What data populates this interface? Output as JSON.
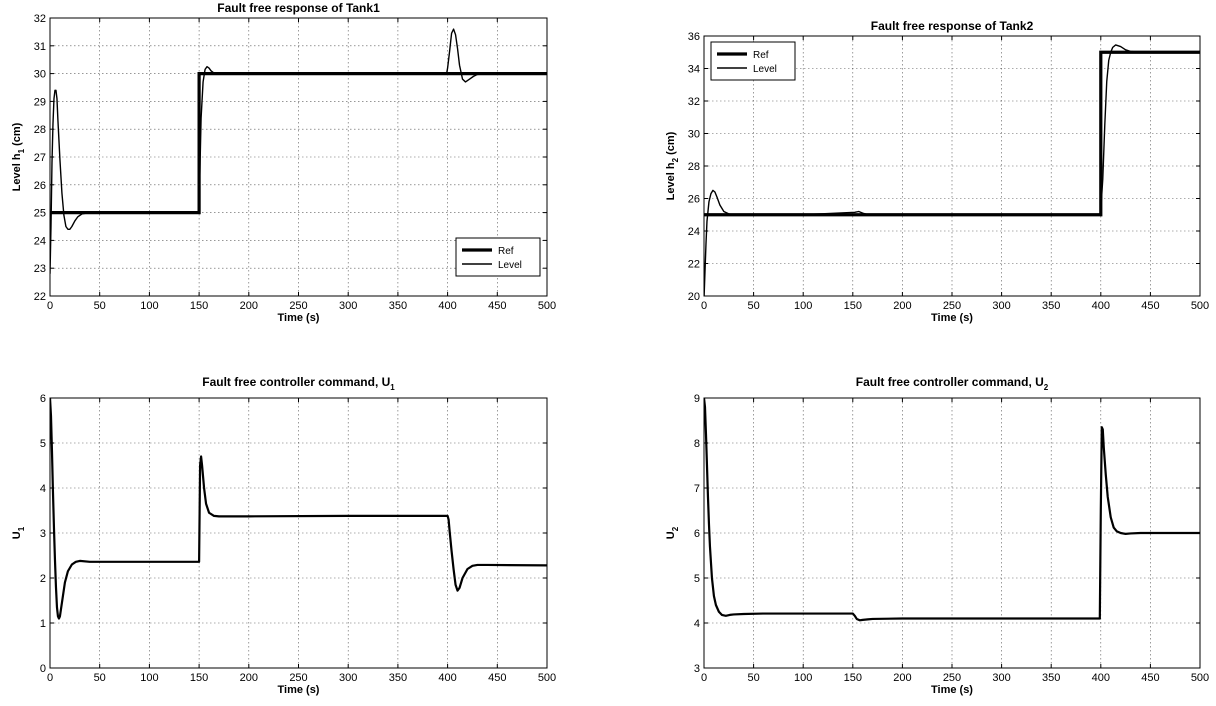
{
  "chart_data": [
    {
      "type": "line",
      "title": "Fault free response of Tank1",
      "xlabel": "Time (s)",
      "ylabel": {
        "main": "Level h",
        "sub": "1",
        "rest": " (cm)"
      },
      "xlim": [
        0,
        500
      ],
      "ylim": [
        22,
        32
      ],
      "xticks": [
        0,
        50,
        100,
        150,
        200,
        250,
        300,
        350,
        400,
        450,
        500
      ],
      "yticks": [
        22,
        23,
        24,
        25,
        26,
        27,
        28,
        29,
        30,
        31,
        32
      ],
      "grid": true,
      "legend_position": "bottom-right",
      "series": [
        {
          "name": "Ref",
          "style": "thick",
          "x": [
            0,
            150,
            150,
            500
          ],
          "y": [
            25,
            25,
            30,
            30
          ]
        },
        {
          "name": "Level",
          "style": "thin",
          "x": [
            0,
            1,
            2,
            3,
            4,
            5,
            6,
            7,
            8,
            10,
            12,
            14,
            16,
            18,
            20,
            22,
            25,
            28,
            32,
            40,
            60,
            100,
            149,
            150,
            151,
            152,
            154,
            156,
            158,
            160,
            162,
            165,
            170,
            200,
            300,
            399,
            400,
            402,
            404,
            406,
            408,
            410,
            412,
            415,
            418,
            422,
            426,
            430,
            440,
            500
          ],
          "y": [
            22.8,
            24.5,
            26.8,
            28.2,
            29.1,
            29.4,
            29.4,
            29.1,
            28.3,
            26.9,
            25.7,
            24.9,
            24.5,
            24.4,
            24.4,
            24.5,
            24.7,
            24.85,
            24.95,
            25,
            25,
            25,
            25,
            25.2,
            26.8,
            28.4,
            29.7,
            30.15,
            30.25,
            30.2,
            30.1,
            30.02,
            30,
            30,
            30,
            30,
            30.2,
            30.8,
            31.45,
            31.6,
            31.4,
            30.9,
            30.3,
            29.8,
            29.7,
            29.8,
            29.9,
            29.97,
            30,
            30
          ]
        }
      ]
    },
    {
      "type": "line",
      "title": "Fault free response of Tank2",
      "xlabel": "Time (s)",
      "ylabel": {
        "main": "Level h",
        "sub": "2",
        "rest": " (cm)"
      },
      "xlim": [
        0,
        500
      ],
      "ylim": [
        20,
        36
      ],
      "xticks": [
        0,
        50,
        100,
        150,
        200,
        250,
        300,
        350,
        400,
        450,
        500
      ],
      "yticks": [
        20,
        22,
        24,
        26,
        28,
        30,
        32,
        34,
        36
      ],
      "grid": true,
      "legend_position": "top-left",
      "series": [
        {
          "name": "Ref",
          "style": "thick",
          "x": [
            0,
            400,
            400,
            500
          ],
          "y": [
            25,
            25,
            35,
            35
          ]
        },
        {
          "name": "Level",
          "style": "thin",
          "x": [
            0,
            1,
            2,
            3,
            5,
            7,
            9,
            11,
            13,
            16,
            20,
            25,
            30,
            40,
            100,
            152,
            156,
            160,
            166,
            200,
            300,
            399,
            400,
            402,
            404,
            406,
            408,
            410,
            412,
            415,
            420,
            425,
            430,
            440,
            500
          ],
          "y": [
            19.8,
            21.5,
            23.2,
            24.6,
            25.8,
            26.3,
            26.5,
            26.4,
            26.1,
            25.6,
            25.2,
            25.05,
            25,
            25,
            25,
            25.15,
            25.2,
            25.1,
            25,
            25,
            25,
            25,
            25.3,
            27.2,
            30.5,
            33.2,
            34.5,
            35,
            35.3,
            35.45,
            35.35,
            35.15,
            35.05,
            35,
            35
          ]
        }
      ]
    },
    {
      "type": "line",
      "title": {
        "main": "Fault free controller command, U",
        "sub": "1"
      },
      "xlabel": "Time (s)",
      "ylabel": {
        "main": "U",
        "sub": "1",
        "rest": ""
      },
      "xlim": [
        0,
        500
      ],
      "ylim": [
        0,
        6
      ],
      "xticks": [
        0,
        50,
        100,
        150,
        200,
        250,
        300,
        350,
        400,
        450,
        500
      ],
      "yticks": [
        0,
        1,
        2,
        3,
        4,
        5,
        6
      ],
      "grid": true,
      "series": [
        {
          "style": "medium",
          "x": [
            0,
            1,
            2,
            3,
            4,
            5,
            6,
            7,
            8,
            9,
            10,
            11,
            13,
            15,
            18,
            22,
            26,
            30,
            40,
            60,
            100,
            149,
            150,
            151,
            152,
            153,
            155,
            157,
            160,
            165,
            170,
            200,
            300,
            399,
            400,
            401,
            402,
            404,
            406,
            408,
            410,
            412,
            415,
            420,
            425,
            430,
            440,
            500
          ],
          "y": [
            6,
            5.6,
            4.8,
            3.9,
            3.1,
            2.4,
            1.8,
            1.35,
            1.15,
            1.1,
            1.15,
            1.3,
            1.6,
            1.9,
            2.15,
            2.3,
            2.36,
            2.38,
            2.36,
            2.36,
            2.36,
            2.36,
            2.36,
            4.5,
            4.7,
            4.5,
            4.0,
            3.65,
            3.45,
            3.38,
            3.37,
            3.37,
            3.38,
            3.38,
            3.38,
            3.3,
            3.05,
            2.6,
            2.2,
            1.85,
            1.72,
            1.78,
            2.0,
            2.2,
            2.27,
            2.29,
            2.29,
            2.28
          ]
        }
      ]
    },
    {
      "type": "line",
      "title": {
        "main": "Fault free controller command, U",
        "sub": "2"
      },
      "xlabel": "Time (s)",
      "ylabel": {
        "main": "U",
        "sub": "2",
        "rest": ""
      },
      "xlim": [
        0,
        500
      ],
      "ylim": [
        3,
        9
      ],
      "xticks": [
        0,
        50,
        100,
        150,
        200,
        250,
        300,
        350,
        400,
        450,
        500
      ],
      "yticks": [
        3,
        4,
        5,
        6,
        7,
        8,
        9
      ],
      "grid": true,
      "series": [
        {
          "style": "medium",
          "x": [
            0,
            1,
            2,
            3,
            4,
            5,
            6,
            8,
            10,
            12,
            15,
            18,
            22,
            26,
            30,
            40,
            60,
            100,
            150,
            152,
            154,
            157,
            160,
            165,
            170,
            200,
            300,
            399,
            400,
            401,
            402,
            403,
            405,
            407,
            410,
            413,
            416,
            420,
            425,
            430,
            440,
            500
          ],
          "y": [
            9,
            8.8,
            8.2,
            7.5,
            6.8,
            6.2,
            5.7,
            5.0,
            4.6,
            4.4,
            4.25,
            4.18,
            4.16,
            4.18,
            4.19,
            4.2,
            4.21,
            4.21,
            4.21,
            4.16,
            4.09,
            4.06,
            4.07,
            4.08,
            4.09,
            4.1,
            4.1,
            4.1,
            6.5,
            8.35,
            8.3,
            7.9,
            7.3,
            6.8,
            6.35,
            6.12,
            6.04,
            6.0,
            5.98,
            5.99,
            6.0,
            6.0
          ]
        }
      ]
    }
  ]
}
